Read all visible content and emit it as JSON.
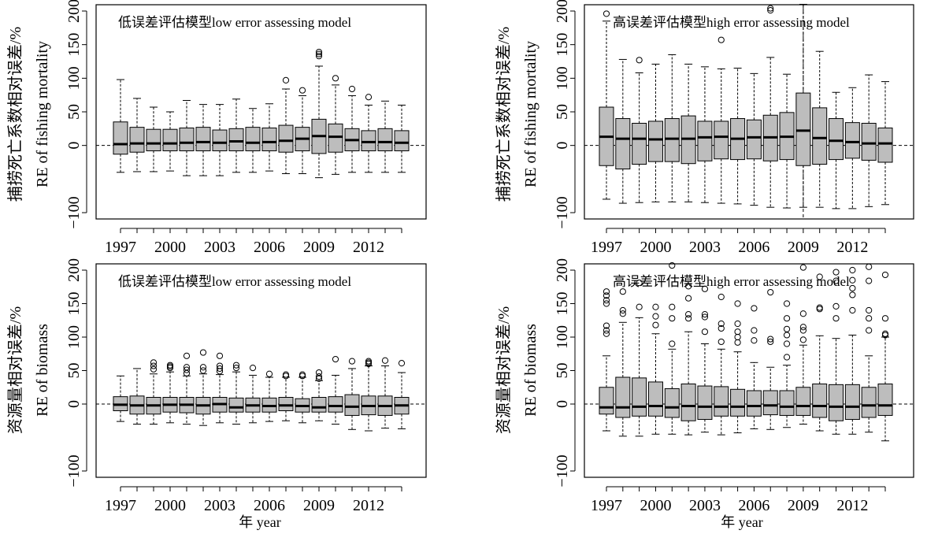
{
  "chart_data": [
    {
      "type": "box",
      "title": "低误差评估模型low error assessing model",
      "ylabel_cn": "捕捞死亡系数相对误差/%",
      "ylabel_en": "RE of fishing mortality",
      "xlabel": "",
      "years": [
        1997,
        1998,
        1999,
        2000,
        2001,
        2002,
        2003,
        2004,
        2005,
        2006,
        2007,
        2008,
        2009,
        2010,
        2011,
        2012,
        2013,
        2014
      ],
      "xtick_labels": [
        "1997",
        "2000",
        "2003",
        "2006",
        "2009",
        "2012"
      ],
      "xtick_years": [
        1997,
        2000,
        2003,
        2006,
        2009,
        2012
      ],
      "ylim": [
        -100,
        200
      ],
      "yticks": [
        -100,
        0,
        50,
        100,
        150,
        200
      ],
      "vline_year": null,
      "boxes": [
        {
          "min": -40,
          "q1": -13,
          "median": 2,
          "q3": 35,
          "max": 98,
          "outliers": []
        },
        {
          "min": -39,
          "q1": -10,
          "median": 3,
          "q3": 27,
          "max": 70,
          "outliers": []
        },
        {
          "min": -39,
          "q1": -8,
          "median": 3,
          "q3": 24,
          "max": 57,
          "outliers": []
        },
        {
          "min": -38,
          "q1": -8,
          "median": 3,
          "q3": 24,
          "max": 50,
          "outliers": []
        },
        {
          "min": -45,
          "q1": -8,
          "median": 4,
          "q3": 26,
          "max": 67,
          "outliers": []
        },
        {
          "min": -45,
          "q1": -8,
          "median": 5,
          "q3": 27,
          "max": 61,
          "outliers": []
        },
        {
          "min": -45,
          "q1": -8,
          "median": 4,
          "q3": 23,
          "max": 61,
          "outliers": []
        },
        {
          "min": -40,
          "q1": -8,
          "median": 6,
          "q3": 25,
          "max": 69,
          "outliers": []
        },
        {
          "min": -40,
          "q1": -8,
          "median": 4,
          "q3": 27,
          "max": 55,
          "outliers": []
        },
        {
          "min": -38,
          "q1": -8,
          "median": 5,
          "q3": 26,
          "max": 62,
          "outliers": []
        },
        {
          "min": -42,
          "q1": -10,
          "median": 7,
          "q3": 30,
          "max": 84,
          "outliers": [
            97
          ]
        },
        {
          "min": -42,
          "q1": -8,
          "median": 10,
          "q3": 27,
          "max": 74,
          "outliers": [
            82
          ]
        },
        {
          "min": -48,
          "q1": -12,
          "median": 14,
          "q3": 39,
          "max": 118,
          "outliers": [
            133,
            136,
            139
          ]
        },
        {
          "min": -43,
          "q1": -10,
          "median": 13,
          "q3": 32,
          "max": 90,
          "outliers": [
            100
          ]
        },
        {
          "min": -40,
          "q1": -8,
          "median": 8,
          "q3": 25,
          "max": 74,
          "outliers": [
            84
          ]
        },
        {
          "min": -40,
          "q1": -8,
          "median": 5,
          "q3": 22,
          "max": 60,
          "outliers": [
            72
          ]
        },
        {
          "min": -40,
          "q1": -8,
          "median": 5,
          "q3": 25,
          "max": 66,
          "outliers": []
        },
        {
          "min": -40,
          "q1": -8,
          "median": 4,
          "q3": 22,
          "max": 60,
          "outliers": []
        }
      ]
    },
    {
      "type": "box",
      "title": "高误差评估模型high error assessing model",
      "ylabel_cn": "捕捞死亡系数相对误差/%",
      "ylabel_en": "RE of fishing mortality",
      "xlabel": "",
      "years": [
        1997,
        1998,
        1999,
        2000,
        2001,
        2002,
        2003,
        2004,
        2005,
        2006,
        2007,
        2008,
        2009,
        2010,
        2011,
        2012,
        2013,
        2014
      ],
      "xtick_labels": [
        "1997",
        "2000",
        "2003",
        "2006",
        "2009",
        "2012"
      ],
      "xtick_years": [
        1997,
        2000,
        2003,
        2006,
        2009,
        2012
      ],
      "ylim": [
        -100,
        200
      ],
      "yticks": [
        -100,
        0,
        50,
        100,
        150,
        200
      ],
      "vline_year": 2009,
      "boxes": [
        {
          "min": -80,
          "q1": -30,
          "median": 13,
          "q3": 57,
          "max": 185,
          "outliers": [
            196
          ]
        },
        {
          "min": -86,
          "q1": -35,
          "median": 10,
          "q3": 40,
          "max": 128,
          "outliers": []
        },
        {
          "min": -85,
          "q1": -28,
          "median": 10,
          "q3": 33,
          "max": 108,
          "outliers": [
            127
          ]
        },
        {
          "min": -84,
          "q1": -24,
          "median": 9,
          "q3": 36,
          "max": 121,
          "outliers": []
        },
        {
          "min": -84,
          "q1": -24,
          "median": 10,
          "q3": 40,
          "max": 135,
          "outliers": []
        },
        {
          "min": -84,
          "q1": -27,
          "median": 10,
          "q3": 44,
          "max": 121,
          "outliers": []
        },
        {
          "min": -85,
          "q1": -23,
          "median": 12,
          "q3": 36,
          "max": 117,
          "outliers": []
        },
        {
          "min": -86,
          "q1": -20,
          "median": 13,
          "q3": 36,
          "max": 114,
          "outliers": [
            157
          ]
        },
        {
          "min": -87,
          "q1": -21,
          "median": 10,
          "q3": 40,
          "max": 115,
          "outliers": []
        },
        {
          "min": -89,
          "q1": -20,
          "median": 12,
          "q3": 38,
          "max": 107,
          "outliers": []
        },
        {
          "min": -92,
          "q1": -23,
          "median": 12,
          "q3": 45,
          "max": 131,
          "outliers": [
            201,
            204
          ]
        },
        {
          "min": -93,
          "q1": -21,
          "median": 13,
          "q3": 49,
          "max": 106,
          "outliers": []
        },
        {
          "min": -92,
          "q1": -30,
          "median": 22,
          "q3": 78,
          "max": 210,
          "outliers": []
        },
        {
          "min": -92,
          "q1": -28,
          "median": 11,
          "q3": 56,
          "max": 140,
          "outliers": []
        },
        {
          "min": -94,
          "q1": -21,
          "median": 7,
          "q3": 40,
          "max": 79,
          "outliers": []
        },
        {
          "min": -94,
          "q1": -19,
          "median": 5,
          "q3": 34,
          "max": 86,
          "outliers": []
        },
        {
          "min": -91,
          "q1": -22,
          "median": 3,
          "q3": 33,
          "max": 105,
          "outliers": []
        },
        {
          "min": -88,
          "q1": -25,
          "median": 3,
          "q3": 26,
          "max": 95,
          "outliers": []
        }
      ]
    },
    {
      "type": "box",
      "title": "低误差评估模型low error assessing model",
      "ylabel_cn": "资源量相对误差/%",
      "ylabel_en": "RE of biomass",
      "xlabel": "年 year",
      "years": [
        1997,
        1998,
        1999,
        2000,
        2001,
        2002,
        2003,
        2004,
        2005,
        2006,
        2007,
        2008,
        2009,
        2010,
        2011,
        2012,
        2013,
        2014
      ],
      "xtick_labels": [
        "1997",
        "2000",
        "2003",
        "2006",
        "2009",
        "2012"
      ],
      "xtick_years": [
        1997,
        2000,
        2003,
        2006,
        2009,
        2012
      ],
      "ylim": [
        -100,
        200
      ],
      "yticks": [
        -100,
        0,
        50,
        100,
        150,
        200
      ],
      "vline_year": null,
      "boxes": [
        {
          "min": -26,
          "q1": -10,
          "median": -1,
          "q3": 11,
          "max": 42,
          "outliers": []
        },
        {
          "min": -30,
          "q1": -15,
          "median": -2,
          "q3": 12,
          "max": 53,
          "outliers": []
        },
        {
          "min": -30,
          "q1": -15,
          "median": -2,
          "q3": 10,
          "max": 45,
          "outliers": [
            52,
            57,
            62
          ]
        },
        {
          "min": -28,
          "q1": -12,
          "median": -1,
          "q3": 10,
          "max": 48,
          "outliers": [
            54,
            56,
            58
          ]
        },
        {
          "min": -30,
          "q1": -13,
          "median": -1,
          "q3": 10,
          "max": 42,
          "outliers": [
            46,
            51,
            55,
            72
          ]
        },
        {
          "min": -32,
          "q1": -15,
          "median": -2,
          "q3": 10,
          "max": 45,
          "outliers": [
            50,
            55,
            77
          ]
        },
        {
          "min": -28,
          "q1": -12,
          "median": 0,
          "q3": 10,
          "max": 44,
          "outliers": [
            49,
            53,
            57,
            72
          ]
        },
        {
          "min": -30,
          "q1": -12,
          "median": -5,
          "q3": 9,
          "max": 48,
          "outliers": [
            54,
            58
          ]
        },
        {
          "min": -28,
          "q1": -12,
          "median": -2,
          "q3": 9,
          "max": 43,
          "outliers": [
            54
          ]
        },
        {
          "min": -26,
          "q1": -12,
          "median": -3,
          "q3": 9,
          "max": 40,
          "outliers": [
            45
          ]
        },
        {
          "min": -25,
          "q1": -10,
          "median": -2,
          "q3": 10,
          "max": 40,
          "outliers": [
            42,
            44
          ]
        },
        {
          "min": -28,
          "q1": -12,
          "median": -3,
          "q3": 8,
          "max": 40,
          "outliers": [
            42,
            44
          ]
        },
        {
          "min": -25,
          "q1": -12,
          "median": -5,
          "q3": 10,
          "max": 35,
          "outliers": [
            38,
            41,
            47
          ]
        },
        {
          "min": -30,
          "q1": -12,
          "median": -3,
          "q3": 11,
          "max": 43,
          "outliers": [
            67
          ]
        },
        {
          "min": -38,
          "q1": -17,
          "median": -4,
          "q3": 14,
          "max": 53,
          "outliers": [
            64
          ]
        },
        {
          "min": -40,
          "q1": -16,
          "median": -3,
          "q3": 12,
          "max": 57,
          "outliers": [
            60,
            62,
            64
          ]
        },
        {
          "min": -36,
          "q1": -17,
          "median": -3,
          "q3": 12,
          "max": 57,
          "outliers": [
            65
          ]
        },
        {
          "min": -37,
          "q1": -15,
          "median": -2,
          "q3": 10,
          "max": 47,
          "outliers": [
            61
          ]
        }
      ]
    },
    {
      "type": "box",
      "title": "高误差评估模型high error assessing model",
      "ylabel_cn": "资源量相对误差/%",
      "ylabel_en": "RE of biomass",
      "xlabel": "年 year",
      "years": [
        1997,
        1998,
        1999,
        2000,
        2001,
        2002,
        2003,
        2004,
        2005,
        2006,
        2007,
        2008,
        2009,
        2010,
        2011,
        2012,
        2013,
        2014
      ],
      "xtick_labels": [
        "1997",
        "2000",
        "2003",
        "2006",
        "2009",
        "2012"
      ],
      "xtick_years": [
        1997,
        2000,
        2003,
        2006,
        2009,
        2012
      ],
      "ylim": [
        -100,
        200
      ],
      "yticks": [
        -100,
        0,
        50,
        100,
        150,
        200
      ],
      "vline_year": null,
      "boxes": [
        {
          "min": -40,
          "q1": -15,
          "median": -5,
          "q3": 25,
          "max": 72,
          "outliers": [
            105,
            110,
            117,
            150,
            155,
            162,
            168
          ]
        },
        {
          "min": -48,
          "q1": -20,
          "median": -5,
          "q3": 40,
          "max": 122,
          "outliers": [
            135,
            140,
            168
          ]
        },
        {
          "min": -48,
          "q1": -18,
          "median": -4,
          "q3": 39,
          "max": 129,
          "outliers": [
            145,
            181
          ]
        },
        {
          "min": -45,
          "q1": -18,
          "median": -3,
          "q3": 33,
          "max": 105,
          "outliers": [
            118,
            131,
            145
          ]
        },
        {
          "min": -45,
          "q1": -20,
          "median": -5,
          "q3": 23,
          "max": 82,
          "outliers": [
            90,
            128,
            145,
            207
          ]
        },
        {
          "min": -46,
          "q1": -25,
          "median": -3,
          "q3": 30,
          "max": 108,
          "outliers": [
            128,
            134,
            158,
            176
          ]
        },
        {
          "min": -42,
          "q1": -23,
          "median": -4,
          "q3": 27,
          "max": 90,
          "outliers": [
            108,
            130,
            134,
            172
          ]
        },
        {
          "min": -46,
          "q1": -18,
          "median": -4,
          "q3": 26,
          "max": 82,
          "outliers": [
            93,
            113,
            120,
            160
          ]
        },
        {
          "min": -43,
          "q1": -18,
          "median": -4,
          "q3": 22,
          "max": 78,
          "outliers": [
            92,
            100,
            108,
            120,
            150
          ]
        },
        {
          "min": -37,
          "q1": -18,
          "median": -3,
          "q3": 20,
          "max": 62,
          "outliers": [
            95,
            110,
            143
          ]
        },
        {
          "min": -38,
          "q1": -16,
          "median": -2,
          "q3": 20,
          "max": 55,
          "outliers": [
            93,
            97,
            167
          ]
        },
        {
          "min": -35,
          "q1": -17,
          "median": -4,
          "q3": 20,
          "max": 58,
          "outliers": [
            70,
            90,
            103,
            112,
            128,
            150
          ]
        },
        {
          "min": -30,
          "q1": -17,
          "median": -3,
          "q3": 25,
          "max": 88,
          "outliers": [
            96,
            110,
            115,
            135,
            204
          ]
        },
        {
          "min": -40,
          "q1": -20,
          "median": -3,
          "q3": 30,
          "max": 102,
          "outliers": [
            142,
            144,
            190
          ]
        },
        {
          "min": -45,
          "q1": -25,
          "median": -4,
          "q3": 29,
          "max": 98,
          "outliers": [
            128,
            146,
            184,
            197
          ]
        },
        {
          "min": -45,
          "q1": -23,
          "median": -4,
          "q3": 29,
          "max": 103,
          "outliers": [
            140,
            163,
            173,
            185,
            200
          ]
        },
        {
          "min": -42,
          "q1": -20,
          "median": -2,
          "q3": 25,
          "max": 72,
          "outliers": [
            110,
            128,
            140,
            184,
            205
          ]
        },
        {
          "min": -55,
          "q1": -17,
          "median": -2,
          "q3": 30,
          "max": 100,
          "outliers": [
            103,
            105,
            128,
            193
          ]
        }
      ]
    }
  ]
}
